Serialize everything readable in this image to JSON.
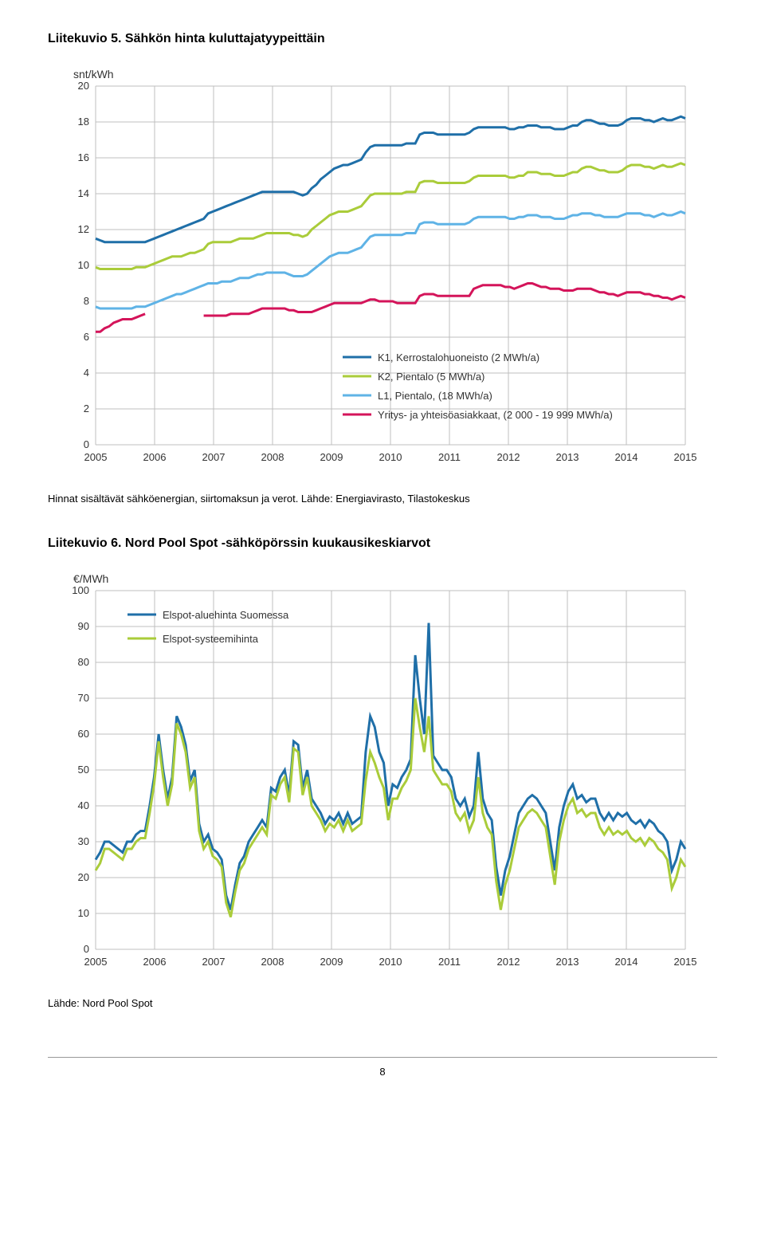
{
  "section1": {
    "heading": "Liitekuvio 5. Sähkön hinta kuluttajatyypeittäin",
    "source": "Hinnat sisältävät sähköenergian, siirtomaksun ja verot. Lähde: Energiavirasto, Tilastokeskus"
  },
  "section2": {
    "heading": "Liitekuvio 6. Nord Pool Spot -sähköpörssin kuukausikeskiarvot",
    "source": "Lähde: Nord Pool Spot"
  },
  "page_number": "8",
  "chart1": {
    "type": "line",
    "ylabel": "snt/kWh",
    "ylim": [
      0,
      20
    ],
    "ytick_step": 2,
    "xticks": [
      "2005",
      "2006",
      "2007",
      "2008",
      "2009",
      "2010",
      "2011",
      "2012",
      "2013",
      "2014",
      "2015"
    ],
    "background_color": "#ffffff",
    "grid_color": "#bfbfbf",
    "line_width": 3,
    "legend_position": "inside-right-lower",
    "series": [
      {
        "name": "K1, Kerrostalohuoneisto (2 MWh/a)",
        "color": "#1f6fa8",
        "legend_line_color": "#1f6fa8",
        "values": [
          11.5,
          11.4,
          11.3,
          11.3,
          11.3,
          11.3,
          11.3,
          11.3,
          11.3,
          11.3,
          11.3,
          11.3,
          11.4,
          11.5,
          11.6,
          11.7,
          11.8,
          11.9,
          12.0,
          12.1,
          12.2,
          12.3,
          12.4,
          12.5,
          12.6,
          12.9,
          13.0,
          13.1,
          13.2,
          13.3,
          13.4,
          13.5,
          13.6,
          13.7,
          13.8,
          13.9,
          14.0,
          14.1,
          14.1,
          14.1,
          14.1,
          14.1,
          14.1,
          14.1,
          14.1,
          14.0,
          13.9,
          14.0,
          14.3,
          14.5,
          14.8,
          15.0,
          15.2,
          15.4,
          15.5,
          15.6,
          15.6,
          15.7,
          15.8,
          15.9,
          16.3,
          16.6,
          16.7,
          16.7,
          16.7,
          16.7,
          16.7,
          16.7,
          16.7,
          16.8,
          16.8,
          16.8,
          17.3,
          17.4,
          17.4,
          17.4,
          17.3,
          17.3,
          17.3,
          17.3,
          17.3,
          17.3,
          17.3,
          17.4,
          17.6,
          17.7,
          17.7,
          17.7,
          17.7,
          17.7,
          17.7,
          17.7,
          17.6,
          17.6,
          17.7,
          17.7,
          17.8,
          17.8,
          17.8,
          17.7,
          17.7,
          17.7,
          17.6,
          17.6,
          17.6,
          17.7,
          17.8,
          17.8,
          18.0,
          18.1,
          18.1,
          18.0,
          17.9,
          17.9,
          17.8,
          17.8,
          17.8,
          17.9,
          18.1,
          18.2,
          18.2,
          18.2,
          18.1,
          18.1,
          18.0,
          18.1,
          18.2,
          18.1,
          18.1,
          18.2,
          18.3,
          18.2
        ]
      },
      {
        "name": "K2, Pientalo (5 MWh/a)",
        "color": "#aacc3a",
        "legend_line_color": "#aacc3a",
        "values": [
          9.9,
          9.8,
          9.8,
          9.8,
          9.8,
          9.8,
          9.8,
          9.8,
          9.8,
          9.9,
          9.9,
          9.9,
          10.0,
          10.1,
          10.2,
          10.3,
          10.4,
          10.5,
          10.5,
          10.5,
          10.6,
          10.7,
          10.7,
          10.8,
          10.9,
          11.2,
          11.3,
          11.3,
          11.3,
          11.3,
          11.3,
          11.4,
          11.5,
          11.5,
          11.5,
          11.5,
          11.6,
          11.7,
          11.8,
          11.8,
          11.8,
          11.8,
          11.8,
          11.8,
          11.7,
          11.7,
          11.6,
          11.7,
          12.0,
          12.2,
          12.4,
          12.6,
          12.8,
          12.9,
          13.0,
          13.0,
          13.0,
          13.1,
          13.2,
          13.3,
          13.6,
          13.9,
          14.0,
          14.0,
          14.0,
          14.0,
          14.0,
          14.0,
          14.0,
          14.1,
          14.1,
          14.1,
          14.6,
          14.7,
          14.7,
          14.7,
          14.6,
          14.6,
          14.6,
          14.6,
          14.6,
          14.6,
          14.6,
          14.7,
          14.9,
          15.0,
          15.0,
          15.0,
          15.0,
          15.0,
          15.0,
          15.0,
          14.9,
          14.9,
          15.0,
          15.0,
          15.2,
          15.2,
          15.2,
          15.1,
          15.1,
          15.1,
          15.0,
          15.0,
          15.0,
          15.1,
          15.2,
          15.2,
          15.4,
          15.5,
          15.5,
          15.4,
          15.3,
          15.3,
          15.2,
          15.2,
          15.2,
          15.3,
          15.5,
          15.6,
          15.6,
          15.6,
          15.5,
          15.5,
          15.4,
          15.5,
          15.6,
          15.5,
          15.5,
          15.6,
          15.7,
          15.6
        ]
      },
      {
        "name": "L1, Pientalo, (18 MWh/a)",
        "color": "#5fb3e6",
        "legend_line_color": "#5fb3e6",
        "values": [
          7.7,
          7.6,
          7.6,
          7.6,
          7.6,
          7.6,
          7.6,
          7.6,
          7.6,
          7.7,
          7.7,
          7.7,
          7.8,
          7.9,
          8.0,
          8.1,
          8.2,
          8.3,
          8.4,
          8.4,
          8.5,
          8.6,
          8.7,
          8.8,
          8.9,
          9.0,
          9.0,
          9.0,
          9.1,
          9.1,
          9.1,
          9.2,
          9.3,
          9.3,
          9.3,
          9.4,
          9.5,
          9.5,
          9.6,
          9.6,
          9.6,
          9.6,
          9.6,
          9.5,
          9.4,
          9.4,
          9.4,
          9.5,
          9.7,
          9.9,
          10.1,
          10.3,
          10.5,
          10.6,
          10.7,
          10.7,
          10.7,
          10.8,
          10.9,
          11.0,
          11.3,
          11.6,
          11.7,
          11.7,
          11.7,
          11.7,
          11.7,
          11.7,
          11.7,
          11.8,
          11.8,
          11.8,
          12.3,
          12.4,
          12.4,
          12.4,
          12.3,
          12.3,
          12.3,
          12.3,
          12.3,
          12.3,
          12.3,
          12.4,
          12.6,
          12.7,
          12.7,
          12.7,
          12.7,
          12.7,
          12.7,
          12.7,
          12.6,
          12.6,
          12.7,
          12.7,
          12.8,
          12.8,
          12.8,
          12.7,
          12.7,
          12.7,
          12.6,
          12.6,
          12.6,
          12.7,
          12.8,
          12.8,
          12.9,
          12.9,
          12.9,
          12.8,
          12.8,
          12.7,
          12.7,
          12.7,
          12.7,
          12.8,
          12.9,
          12.9,
          12.9,
          12.9,
          12.8,
          12.8,
          12.7,
          12.8,
          12.9,
          12.8,
          12.8,
          12.9,
          13.0,
          12.9
        ]
      },
      {
        "name": "Yritys- ja yhteisöasiakkaat, (2 000 - 19 999 MWh/a)",
        "color": "#d4145a",
        "legend_line_color": "#d4145a",
        "values": [
          6.3,
          6.3,
          6.5,
          6.6,
          6.8,
          6.9,
          7.0,
          7.0,
          7.0,
          7.1,
          7.2,
          7.3,
          null,
          null,
          null,
          null,
          null,
          null,
          null,
          null,
          null,
          null,
          null,
          null,
          7.2,
          7.2,
          7.2,
          7.2,
          7.2,
          7.2,
          7.3,
          7.3,
          7.3,
          7.3,
          7.3,
          7.4,
          7.5,
          7.6,
          7.6,
          7.6,
          7.6,
          7.6,
          7.6,
          7.5,
          7.5,
          7.4,
          7.4,
          7.4,
          7.4,
          7.5,
          7.6,
          7.7,
          7.8,
          7.9,
          7.9,
          7.9,
          7.9,
          7.9,
          7.9,
          7.9,
          8.0,
          8.1,
          8.1,
          8.0,
          8.0,
          8.0,
          8.0,
          7.9,
          7.9,
          7.9,
          7.9,
          7.9,
          8.3,
          8.4,
          8.4,
          8.4,
          8.3,
          8.3,
          8.3,
          8.3,
          8.3,
          8.3,
          8.3,
          8.3,
          8.7,
          8.8,
          8.9,
          8.9,
          8.9,
          8.9,
          8.9,
          8.8,
          8.8,
          8.7,
          8.8,
          8.9,
          9.0,
          9.0,
          8.9,
          8.8,
          8.8,
          8.7,
          8.7,
          8.7,
          8.6,
          8.6,
          8.6,
          8.7,
          8.7,
          8.7,
          8.7,
          8.6,
          8.5,
          8.5,
          8.4,
          8.4,
          8.3,
          8.4,
          8.5,
          8.5,
          8.5,
          8.5,
          8.4,
          8.4,
          8.3,
          8.3,
          8.2,
          8.2,
          8.1,
          8.2,
          8.3,
          8.2
        ]
      }
    ]
  },
  "chart2": {
    "type": "line",
    "ylabel": "€/MWh",
    "ylim": [
      0,
      100
    ],
    "ytick_step": 10,
    "xticks": [
      "2005",
      "2006",
      "2007",
      "2008",
      "2009",
      "2010",
      "2011",
      "2012",
      "2013",
      "2014",
      "2015"
    ],
    "background_color": "#ffffff",
    "grid_color": "#bfbfbf",
    "line_width": 3,
    "legend_position": "inside-left-upper",
    "series": [
      {
        "name": "Elspot-aluehinta Suomessa",
        "color": "#1f6fa8",
        "legend_line_color": "#1f6fa8",
        "values": [
          25,
          27,
          30,
          30,
          29,
          28,
          27,
          30,
          30,
          32,
          33,
          33,
          40,
          48,
          60,
          50,
          42,
          48,
          65,
          62,
          57,
          47,
          50,
          35,
          30,
          32,
          28,
          27,
          25,
          15,
          11,
          18,
          24,
          26,
          30,
          32,
          34,
          36,
          34,
          45,
          44,
          48,
          50,
          43,
          58,
          57,
          45,
          50,
          42,
          40,
          38,
          35,
          37,
          36,
          38,
          35,
          38,
          35,
          36,
          37,
          55,
          65,
          62,
          55,
          52,
          40,
          46,
          45,
          48,
          50,
          53,
          82,
          70,
          60,
          91,
          54,
          52,
          50,
          50,
          48,
          42,
          40,
          42,
          37,
          40,
          55,
          42,
          38,
          36,
          23,
          15,
          22,
          26,
          32,
          38,
          40,
          42,
          43,
          42,
          40,
          38,
          30,
          22,
          34,
          40,
          44,
          46,
          42,
          43,
          41,
          42,
          42,
          38,
          36,
          38,
          36,
          38,
          37,
          38,
          36,
          35,
          36,
          34,
          36,
          35,
          33,
          32,
          30,
          22,
          25,
          30,
          28
        ]
      },
      {
        "name": "Elspot-systeemihinta",
        "color": "#aacc3a",
        "legend_line_color": "#aacc3a",
        "values": [
          22,
          24,
          28,
          28,
          27,
          26,
          25,
          28,
          28,
          30,
          31,
          31,
          38,
          46,
          58,
          48,
          40,
          46,
          63,
          60,
          55,
          45,
          48,
          33,
          28,
          30,
          26,
          25,
          23,
          13,
          9,
          16,
          22,
          24,
          28,
          30,
          32,
          34,
          32,
          43,
          42,
          46,
          48,
          41,
          56,
          55,
          43,
          48,
          40,
          38,
          36,
          33,
          35,
          34,
          36,
          33,
          36,
          33,
          34,
          35,
          47,
          55,
          52,
          48,
          45,
          36,
          42,
          42,
          45,
          47,
          50,
          70,
          62,
          55,
          65,
          50,
          48,
          46,
          46,
          44,
          38,
          36,
          38,
          33,
          36,
          48,
          38,
          34,
          32,
          19,
          11,
          18,
          22,
          28,
          34,
          36,
          38,
          39,
          38,
          36,
          34,
          26,
          18,
          30,
          36,
          40,
          42,
          38,
          39,
          37,
          38,
          38,
          34,
          32,
          34,
          32,
          33,
          32,
          33,
          31,
          30,
          31,
          29,
          31,
          30,
          28,
          27,
          25,
          17,
          20,
          25,
          23
        ]
      }
    ]
  }
}
